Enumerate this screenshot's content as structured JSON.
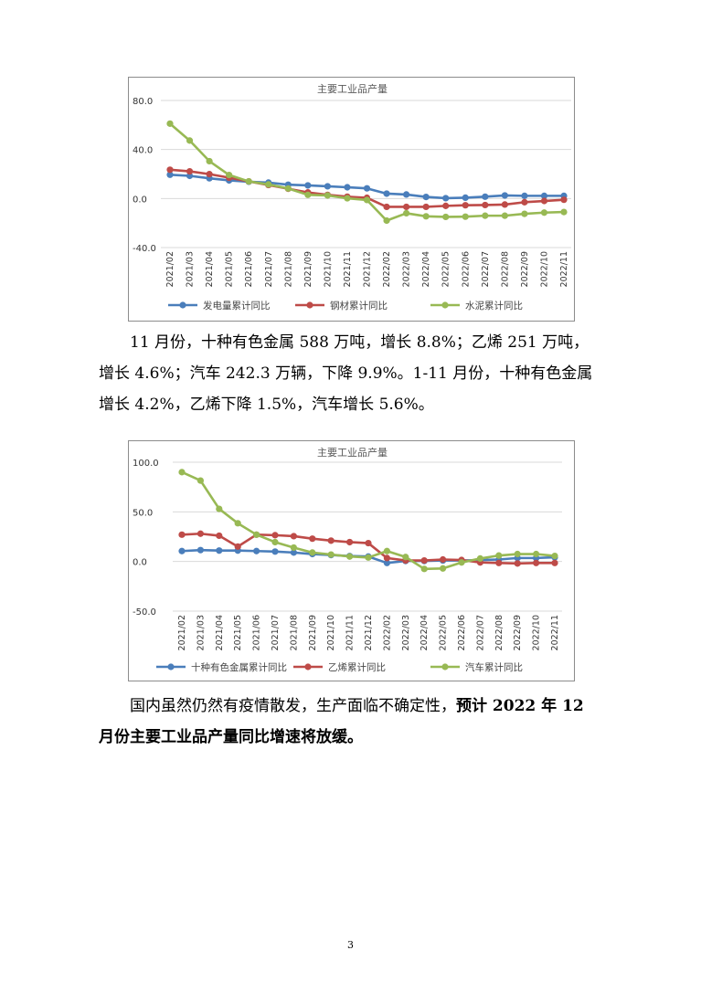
{
  "chart_data": [
    {
      "type": "line",
      "title": "主要工业品产量",
      "ylim": [
        -40,
        80
      ],
      "y_ticks": [
        "80.0",
        "40.0",
        "0.0",
        "-40.0"
      ],
      "y_tick_values": [
        80,
        40,
        0,
        -40
      ],
      "grid": true,
      "legend_position": "bottom",
      "categories": [
        "2021/02",
        "2021/03",
        "2021/04",
        "2021/05",
        "2021/06",
        "2021/07",
        "2021/08",
        "2021/09",
        "2021/10",
        "2021/11",
        "2021/12",
        "2022/02",
        "2022/03",
        "2022/04",
        "2022/05",
        "2022/06",
        "2022/07",
        "2022/08",
        "2022/09",
        "2022/10",
        "2022/11"
      ],
      "series": [
        {
          "name": "发电量累计同比",
          "color": "#4a7ebb",
          "values": [
            19.4,
            18.5,
            16.5,
            14.8,
            13.7,
            13.0,
            11.3,
            10.7,
            10.0,
            9.2,
            8.3,
            4.0,
            3.3,
            1.3,
            0.3,
            0.7,
            1.5,
            2.5,
            2.2,
            2.2,
            2.2
          ]
        },
        {
          "name": "钢材累计同比",
          "color": "#be4b48",
          "values": [
            23.5,
            22.2,
            19.9,
            17.0,
            14.0,
            11.0,
            8.0,
            5.0,
            3.0,
            1.5,
            0.6,
            -6.8,
            -6.8,
            -6.8,
            -6.0,
            -5.5,
            -5.3,
            -4.9,
            -3.0,
            -2.0,
            -1.0
          ]
        },
        {
          "name": "水泥累计同比",
          "color": "#98b954",
          "values": [
            61.1,
            47.3,
            30.5,
            19.2,
            14.0,
            11.5,
            8.2,
            3.0,
            2.5,
            0.2,
            -1.2,
            -18.0,
            -12.0,
            -14.5,
            -15.0,
            -14.8,
            -14.0,
            -14.0,
            -12.5,
            -11.5,
            -11.0
          ]
        }
      ]
    },
    {
      "type": "line",
      "title": "主要工业品产量",
      "ylim": [
        -50,
        100
      ],
      "y_ticks": [
        "100.0",
        "50.0",
        "0.0",
        "-50.0"
      ],
      "y_tick_values": [
        100,
        50,
        0,
        -50
      ],
      "grid": true,
      "legend_position": "bottom",
      "categories": [
        "2021/02",
        "2021/03",
        "2021/04",
        "2021/05",
        "2021/06",
        "2021/07",
        "2021/08",
        "2021/09",
        "2021/10",
        "2021/11",
        "2021/12",
        "2022/02",
        "2022/03",
        "2022/04",
        "2022/05",
        "2022/06",
        "2022/07",
        "2022/08",
        "2022/09",
        "2022/10",
        "2022/11"
      ],
      "series": [
        {
          "name": "十种有色金属累计同比",
          "color": "#4a7ebb",
          "values": [
            10.5,
            11.5,
            11.0,
            11.0,
            10.5,
            10.0,
            9.0,
            7.5,
            6.5,
            5.5,
            5.0,
            -1.5,
            0.5,
            0.5,
            1.0,
            1.0,
            1.5,
            2.0,
            3.5,
            3.5,
            4.2
          ]
        },
        {
          "name": "乙烯累计同比",
          "color": "#be4b48",
          "values": [
            27.0,
            28.0,
            26.0,
            15.0,
            27.0,
            26.5,
            25.5,
            23.0,
            21.0,
            19.5,
            18.5,
            3.5,
            1.0,
            1.0,
            2.0,
            1.5,
            -1.0,
            -1.5,
            -2.0,
            -1.5,
            -1.5
          ]
        },
        {
          "name": "汽车累计同比",
          "color": "#98b954",
          "values": [
            90.0,
            81.5,
            53.0,
            38.5,
            27.0,
            19.5,
            14.0,
            9.0,
            7.0,
            5.0,
            4.0,
            10.5,
            4.5,
            -7.5,
            -7.0,
            -1.0,
            3.0,
            6.0,
            7.5,
            7.5,
            5.6
          ]
        }
      ]
    }
  ],
  "paragraph1": {
    "line1": "11 月份，十种有色金属 588 万吨，增长 8.8%；乙烯 251 万吨，",
    "line2": "增长 4.6%；汽车 242.3 万辆，下降 9.9%。1-11 月份，十种有色金属",
    "line3": "增长 4.2%，乙烯下降 1.5%，汽车增长 5.6%。"
  },
  "paragraph2": {
    "normal": "国内虽然仍然有疫情散发，生产面临不确定性，",
    "bold1": "预计 2022 年 12",
    "bold2": "月份主要工业品产量同比增速将放缓。"
  },
  "page_number": "3"
}
